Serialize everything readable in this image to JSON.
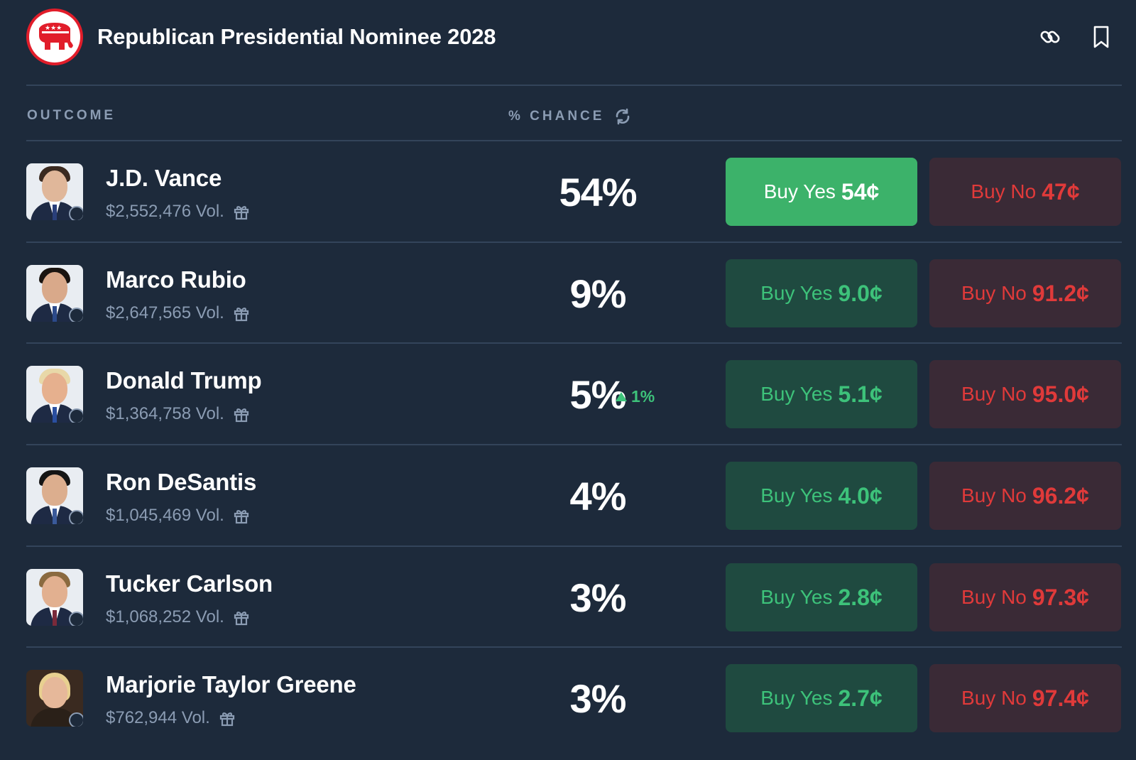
{
  "header": {
    "title": "Republican Presidential Nominee 2028",
    "logo_icon": "elephant-logo-icon",
    "actions": [
      {
        "icon": "link-icon"
      },
      {
        "icon": "bookmark-icon"
      }
    ]
  },
  "columns": {
    "outcome": "OUTCOME",
    "chance": "% CHANCE"
  },
  "colors": {
    "background": "#1d2a3b",
    "yes_green": "#3dc27a",
    "yes_active": "#3cb26a",
    "no_red": "#e03a3a",
    "muted": "#8b9cb3"
  },
  "outcomes": [
    {
      "name": "J.D. Vance",
      "volume": "$2,552,476 Vol.",
      "chance": "54%",
      "change": "",
      "yes_label": "Buy Yes",
      "yes_price": "54¢",
      "no_label": "Buy No",
      "no_price": "47¢",
      "yes_active": true
    },
    {
      "name": "Marco Rubio",
      "volume": "$2,647,565 Vol.",
      "chance": "9%",
      "change": "",
      "yes_label": "Buy Yes",
      "yes_price": "9.0¢",
      "no_label": "Buy No",
      "no_price": "91.2¢",
      "yes_active": false
    },
    {
      "name": "Donald Trump",
      "volume": "$1,364,758 Vol.",
      "chance": "5%",
      "change": "1%",
      "yes_label": "Buy Yes",
      "yes_price": "5.1¢",
      "no_label": "Buy No",
      "no_price": "95.0¢",
      "yes_active": false
    },
    {
      "name": "Ron DeSantis",
      "volume": "$1,045,469 Vol.",
      "chance": "4%",
      "change": "",
      "yes_label": "Buy Yes",
      "yes_price": "4.0¢",
      "no_label": "Buy No",
      "no_price": "96.2¢",
      "yes_active": false
    },
    {
      "name": "Tucker Carlson",
      "volume": "$1,068,252 Vol.",
      "chance": "3%",
      "change": "",
      "yes_label": "Buy Yes",
      "yes_price": "2.8¢",
      "no_label": "Buy No",
      "no_price": "97.3¢",
      "yes_active": false
    },
    {
      "name": "Marjorie Taylor Greene",
      "volume": "$762,944 Vol.",
      "chance": "3%",
      "change": "",
      "yes_label": "Buy Yes",
      "yes_price": "2.7¢",
      "no_label": "Buy No",
      "no_price": "97.4¢",
      "yes_active": false
    }
  ]
}
